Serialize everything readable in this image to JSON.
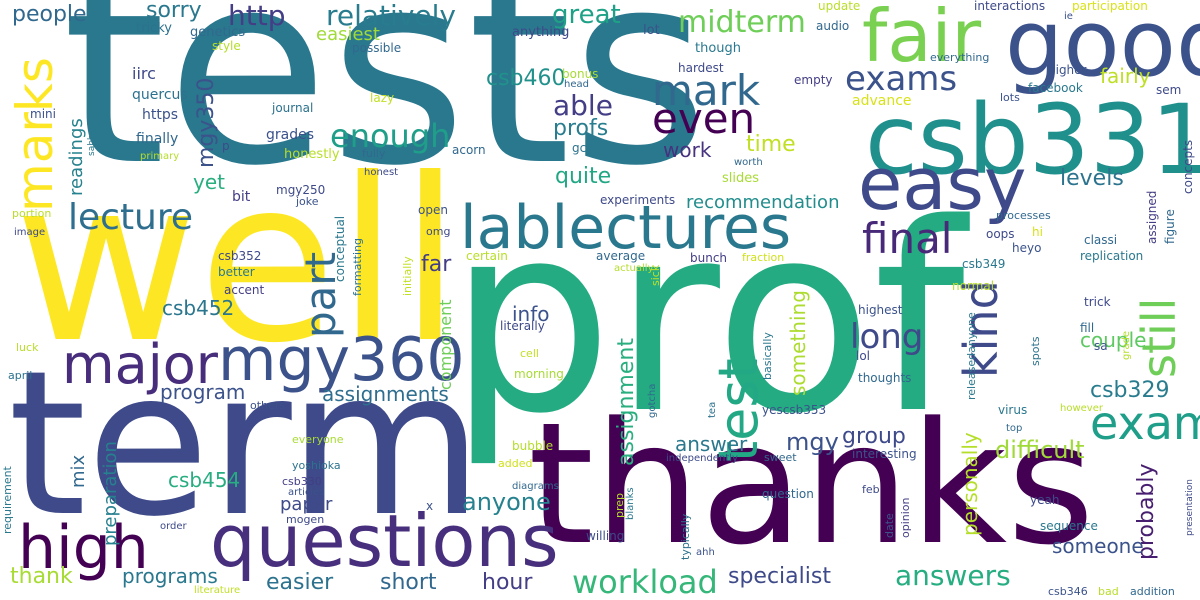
{
  "words": [
    {
      "text": "tests",
      "color": "#2a788e"
    },
    {
      "text": "prof",
      "color": "#25ab82"
    },
    {
      "text": "well",
      "color": "#fde725"
    },
    {
      "text": "thanks",
      "color": "#440154"
    },
    {
      "text": "term",
      "color": "#3e4a89"
    },
    {
      "text": "good",
      "color": "#3b528b"
    },
    {
      "text": "csb331",
      "color": "#20908d"
    },
    {
      "text": "fair",
      "color": "#7ad151"
    },
    {
      "text": "easy",
      "color": "#3e4a89"
    },
    {
      "text": "questions",
      "color": "#472f7d"
    },
    {
      "text": "lablectures",
      "color": "#2a788e"
    },
    {
      "text": "mgy360",
      "color": "#3b528b"
    },
    {
      "text": "high",
      "color": "#440154"
    },
    {
      "text": "major",
      "color": "#472d7b"
    },
    {
      "text": "test",
      "color": "#22a884"
    },
    {
      "text": "marks",
      "color": "#fde725"
    },
    {
      "text": "mark",
      "color": "#31688e"
    },
    {
      "text": "even",
      "color": "#440154"
    },
    {
      "text": "exams",
      "color": "#3b528b"
    },
    {
      "text": "final",
      "color": "#482878"
    },
    {
      "text": "lecture",
      "color": "#2e6e8e"
    },
    {
      "text": "kind",
      "color": "#3e4a89"
    },
    {
      "text": "exam",
      "color": "#1f9e89"
    },
    {
      "text": "part",
      "color": "#31688e"
    },
    {
      "text": "still",
      "color": "#6ece58"
    },
    {
      "text": "enough",
      "color": "#1f9e89"
    },
    {
      "text": "long",
      "color": "#3e4a89"
    },
    {
      "text": "workload",
      "color": "#35b779"
    },
    {
      "text": "answers",
      "color": "#26ad81"
    },
    {
      "text": "http",
      "color": "#433e85"
    },
    {
      "text": "relatively",
      "color": "#287c8e"
    },
    {
      "text": "great",
      "color": "#1fa187"
    },
    {
      "text": "midterm",
      "color": "#6ece58"
    },
    {
      "text": "people",
      "color": "#31688e"
    },
    {
      "text": "sorry",
      "color": "#2a788e"
    },
    {
      "text": "mgy350",
      "color": "#3b528b"
    },
    {
      "text": "able",
      "color": "#433e85"
    },
    {
      "text": "profs",
      "color": "#287d8e"
    },
    {
      "text": "csb460",
      "color": "#21918c"
    },
    {
      "text": "easiest",
      "color": "#a0da39"
    },
    {
      "text": "fairly",
      "color": "#bddf26"
    },
    {
      "text": "time",
      "color": "#c2df23"
    },
    {
      "text": "work",
      "color": "#46327e"
    },
    {
      "text": "quite",
      "color": "#22a785"
    },
    {
      "text": "yet",
      "color": "#29af7f"
    },
    {
      "text": "recommendation",
      "color": "#228d8d"
    },
    {
      "text": "levels",
      "color": "#2c738e"
    },
    {
      "text": "far",
      "color": "#433e85"
    },
    {
      "text": "csb452",
      "color": "#2a768e"
    },
    {
      "text": "info",
      "color": "#3b528b"
    },
    {
      "text": "couple",
      "color": "#5ec962"
    },
    {
      "text": "csb329",
      "color": "#287c8e"
    },
    {
      "text": "mgy",
      "color": "#3b528b"
    },
    {
      "text": "group",
      "color": "#3e4a89"
    },
    {
      "text": "answer",
      "color": "#2a788e"
    },
    {
      "text": "difficult",
      "color": "#a0da39"
    },
    {
      "text": "probably",
      "color": "#481f70"
    },
    {
      "text": "personally",
      "color": "#b5de2b"
    },
    {
      "text": "something",
      "color": "#addc30"
    },
    {
      "text": "assignment",
      "color": "#29af7f"
    },
    {
      "text": "assignments",
      "color": "#2e6e8e"
    },
    {
      "text": "program",
      "color": "#3b528b"
    },
    {
      "text": "readings",
      "color": "#26828e"
    },
    {
      "text": "csb454",
      "color": "#27ad81"
    },
    {
      "text": "anyone",
      "color": "#26828e"
    },
    {
      "text": "specialist",
      "color": "#3e4a89"
    },
    {
      "text": "hour",
      "color": "#433e85"
    },
    {
      "text": "short",
      "color": "#31688e"
    },
    {
      "text": "easier",
      "color": "#2c728e"
    },
    {
      "text": "programs",
      "color": "#2a788e"
    },
    {
      "text": "thank",
      "color": "#a8db34"
    },
    {
      "text": "someone",
      "color": "#3b528b"
    },
    {
      "text": "paper",
      "color": "#3e4a89"
    },
    {
      "text": "preparation",
      "color": "#27808e"
    },
    {
      "text": "mix",
      "color": "#31688e"
    },
    {
      "text": "component",
      "color": "#6ece58"
    },
    {
      "text": "iirc",
      "color": "#3e4a89"
    },
    {
      "text": "quercus",
      "color": "#2c728e"
    },
    {
      "text": "https",
      "color": "#3b528b"
    },
    {
      "text": "finally",
      "color": "#31688e"
    },
    {
      "text": "grades",
      "color": "#3b528b"
    },
    {
      "text": "honestly",
      "color": "#b8de29"
    },
    {
      "text": "mgy250",
      "color": "#3e4a89"
    },
    {
      "text": "bit",
      "color": "#433e85"
    },
    {
      "text": "genetics",
      "color": "#31688e"
    },
    {
      "text": "tricky",
      "color": "#2c728e"
    },
    {
      "text": "style",
      "color": "#b5de2b"
    },
    {
      "text": "anything",
      "color": "#3e4a89"
    },
    {
      "text": "possible",
      "color": "#31688e"
    },
    {
      "text": "lot",
      "color": "#3b528b"
    },
    {
      "text": "though",
      "color": "#2a788e"
    },
    {
      "text": "hardest",
      "color": "#3e4a89"
    },
    {
      "text": "audio",
      "color": "#31688e"
    },
    {
      "text": "update",
      "color": "#b8de29"
    },
    {
      "text": "interactions",
      "color": "#3e4a89"
    },
    {
      "text": "participation",
      "color": "#d8e219"
    },
    {
      "text": "ie",
      "color": "#3b528b"
    },
    {
      "text": "everything",
      "color": "#31688e"
    },
    {
      "text": "higher",
      "color": "#3b528b"
    },
    {
      "text": "empty",
      "color": "#433e85"
    },
    {
      "text": "facebook",
      "color": "#2a788e"
    },
    {
      "text": "sem",
      "color": "#3e4a89"
    },
    {
      "text": "lots",
      "color": "#3b528b"
    },
    {
      "text": "bonus",
      "color": "#a8db34"
    },
    {
      "text": "head",
      "color": "#31688e"
    },
    {
      "text": "lazy",
      "color": "#c2df23"
    },
    {
      "text": "gc",
      "color": "#2c728e"
    },
    {
      "text": "acorn",
      "color": "#31688e"
    },
    {
      "text": "journal",
      "color": "#2c728e"
    },
    {
      "text": "mini",
      "color": "#3b528b"
    },
    {
      "text": "sabbatical",
      "color": "#2a788e"
    },
    {
      "text": "primary",
      "color": "#b5de2b"
    },
    {
      "text": "p",
      "color": "#3e4a89"
    },
    {
      "text": "fully",
      "color": "#31688e"
    },
    {
      "text": "honest",
      "color": "#3e4a89"
    },
    {
      "text": "worth",
      "color": "#31688e"
    },
    {
      "text": "slides",
      "color": "#a8db34"
    },
    {
      "text": "advance",
      "color": "#d8e219"
    },
    {
      "text": "concepts",
      "color": "#3e4a89"
    },
    {
      "text": "figure",
      "color": "#31688e"
    },
    {
      "text": "assigned",
      "color": "#433e85"
    },
    {
      "text": "portion",
      "color": "#b8de29"
    },
    {
      "text": "joke",
      "color": "#3b528b"
    },
    {
      "text": "conceptual",
      "color": "#2a788e"
    },
    {
      "text": "experiments",
      "color": "#3e4a89"
    },
    {
      "text": "processes",
      "color": "#31688e"
    },
    {
      "text": "oops",
      "color": "#3e4a89"
    },
    {
      "text": "hi",
      "color": "#d8e219"
    },
    {
      "text": "heyo",
      "color": "#3b528b"
    },
    {
      "text": "classi",
      "color": "#31688e"
    },
    {
      "text": "replication",
      "color": "#2a788e"
    },
    {
      "text": "image",
      "color": "#3e4a89"
    },
    {
      "text": "open",
      "color": "#3b528b"
    },
    {
      "text": "omg",
      "color": "#3e4a89"
    },
    {
      "text": "csb352",
      "color": "#3e4a89"
    },
    {
      "text": "better",
      "color": "#2a788e"
    },
    {
      "text": "accent",
      "color": "#433e85"
    },
    {
      "text": "formatting",
      "color": "#2c728e"
    },
    {
      "text": "initially",
      "color": "#c2df23"
    },
    {
      "text": "certain",
      "color": "#b8de29"
    },
    {
      "text": "average",
      "color": "#31688e"
    },
    {
      "text": "bunch",
      "color": "#433e85"
    },
    {
      "text": "fraction",
      "color": "#d0e11c"
    },
    {
      "text": "actually",
      "color": "#b5de2b"
    },
    {
      "text": "sick",
      "color": "#c2df23"
    },
    {
      "text": "csb349",
      "color": "#2a788e"
    },
    {
      "text": "normal",
      "color": "#b8de29"
    },
    {
      "text": "highest",
      "color": "#3b528b"
    },
    {
      "text": "releasedanyone",
      "color": "#2a788e"
    },
    {
      "text": "trick",
      "color": "#3e4a89"
    },
    {
      "text": "fill",
      "color": "#31688e"
    },
    {
      "text": "sa",
      "color": "#3b528b"
    },
    {
      "text": "grade",
      "color": "#b5de2b"
    },
    {
      "text": "spots",
      "color": "#2c728e"
    },
    {
      "text": "luck",
      "color": "#b8de29"
    },
    {
      "text": "literally",
      "color": "#3e4a89"
    },
    {
      "text": "cell",
      "color": "#c2df23"
    },
    {
      "text": "morning",
      "color": "#a8db34"
    },
    {
      "text": "basically",
      "color": "#2a788e"
    },
    {
      "text": "lol",
      "color": "#3e4a89"
    },
    {
      "text": "thoughts",
      "color": "#31688e"
    },
    {
      "text": "april",
      "color": "#2c728e"
    },
    {
      "text": "others",
      "color": "#3b528b"
    },
    {
      "text": "gotcha",
      "color": "#31688e"
    },
    {
      "text": "tea",
      "color": "#2c728e"
    },
    {
      "text": "yescsb353",
      "color": "#3b528b"
    },
    {
      "text": "virus",
      "color": "#2a788e"
    },
    {
      "text": "however",
      "color": "#b8de29"
    },
    {
      "text": "top",
      "color": "#31688e"
    },
    {
      "text": "everyone",
      "color": "#a8db34"
    },
    {
      "text": "bubble",
      "color": "#b5de2b"
    },
    {
      "text": "added",
      "color": "#d0e11c"
    },
    {
      "text": "independently",
      "color": "#3e4a89"
    },
    {
      "text": "sweet",
      "color": "#31688e"
    },
    {
      "text": "interesting",
      "color": "#3b528b"
    },
    {
      "text": "yoshioka",
      "color": "#2c728e"
    },
    {
      "text": "csb330",
      "color": "#433e85"
    },
    {
      "text": "articles",
      "color": "#3b528b"
    },
    {
      "text": "mogen",
      "color": "#3e4a89"
    },
    {
      "text": "requirement",
      "color": "#2a788e"
    },
    {
      "text": "order",
      "color": "#3e4a89"
    },
    {
      "text": "x",
      "color": "#3b528b"
    },
    {
      "text": "diagrams",
      "color": "#31688e"
    },
    {
      "text": "blanks",
      "color": "#2a788e"
    },
    {
      "text": "prep",
      "color": "#b8de29"
    },
    {
      "text": "willing",
      "color": "#3e4a89"
    },
    {
      "text": "typically",
      "color": "#2c728e"
    },
    {
      "text": "ahh",
      "color": "#3b528b"
    },
    {
      "text": "question",
      "color": "#31688e"
    },
    {
      "text": "date",
      "color": "#3b528b"
    },
    {
      "text": "opinion",
      "color": "#433e85"
    },
    {
      "text": "feb",
      "color": "#3e4a89"
    },
    {
      "text": "yeah",
      "color": "#3e4a89"
    },
    {
      "text": "sequence",
      "color": "#2a788e"
    },
    {
      "text": "presentation",
      "color": "#3e4a89"
    },
    {
      "text": "literature",
      "color": "#c2df23"
    },
    {
      "text": "csb346",
      "color": "#3b528b"
    },
    {
      "text": "bad",
      "color": "#b8de29"
    },
    {
      "text": "addition",
      "color": "#31688e"
    }
  ]
}
